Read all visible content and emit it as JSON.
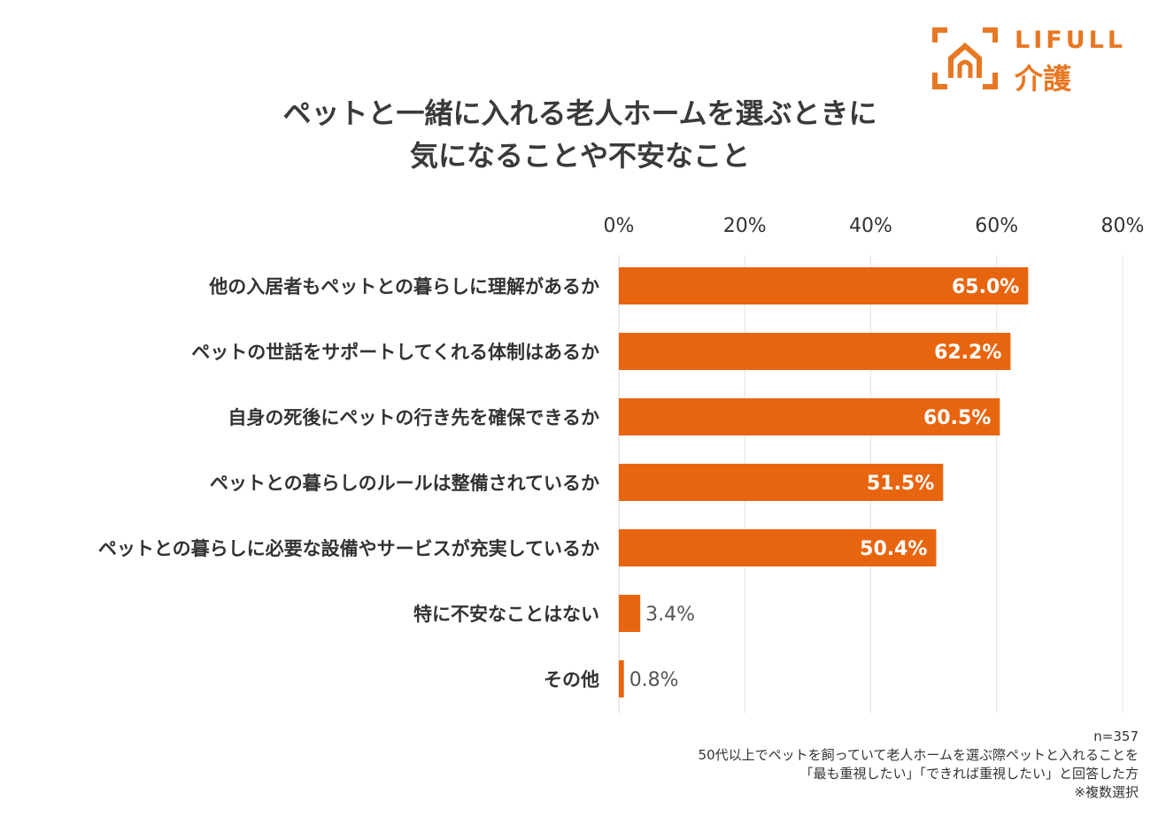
{
  "logo": {
    "text_en": "LIFULL",
    "text_jp": "介護",
    "icon": "house-bracket-icon",
    "color": "#E87722"
  },
  "title": {
    "line1": "ペットと一緒に入れる老人ホームを選ぶときに",
    "line2": "気になることや不安なこと"
  },
  "chart_data": {
    "type": "bar",
    "orientation": "horizontal",
    "title": "ペットと一緒に入れる老人ホームを選ぶときに気になることや不安なこと",
    "categories": [
      "他の入居者もペットとの暮らしに理解があるか",
      "ペットの世話をサポートしてくれる体制はあるか",
      "自身の死後にペットの行き先を確保できるか",
      "ペットとの暮らしのルールは整備されているか",
      "ペットとの暮らしに必要な設備やサービスが充実しているか",
      "特に不安なことはない",
      "その他"
    ],
    "values": [
      65.0,
      62.2,
      60.5,
      51.5,
      50.4,
      3.4,
      0.8
    ],
    "value_labels": [
      "65.0%",
      "62.2%",
      "60.5%",
      "51.5%",
      "50.4%",
      "3.4%",
      "0.8%"
    ],
    "xlim": [
      0,
      80
    ],
    "x_ticks": [
      0,
      20,
      40,
      60,
      80
    ],
    "x_tick_labels": [
      "0%",
      "20%",
      "40%",
      "60%",
      "80%"
    ],
    "axis_position": "top",
    "grid": true,
    "bar_color": "#E8650F",
    "xlabel": "",
    "ylabel": ""
  },
  "footnote": {
    "n": "n=357",
    "line1": "50代以上でペットを飼っていて老人ホームを選ぶ際ペットと入れることを",
    "line2": "「最も重視したい」「できれば重視したい」と回答した方",
    "line3": "※複数選択"
  }
}
